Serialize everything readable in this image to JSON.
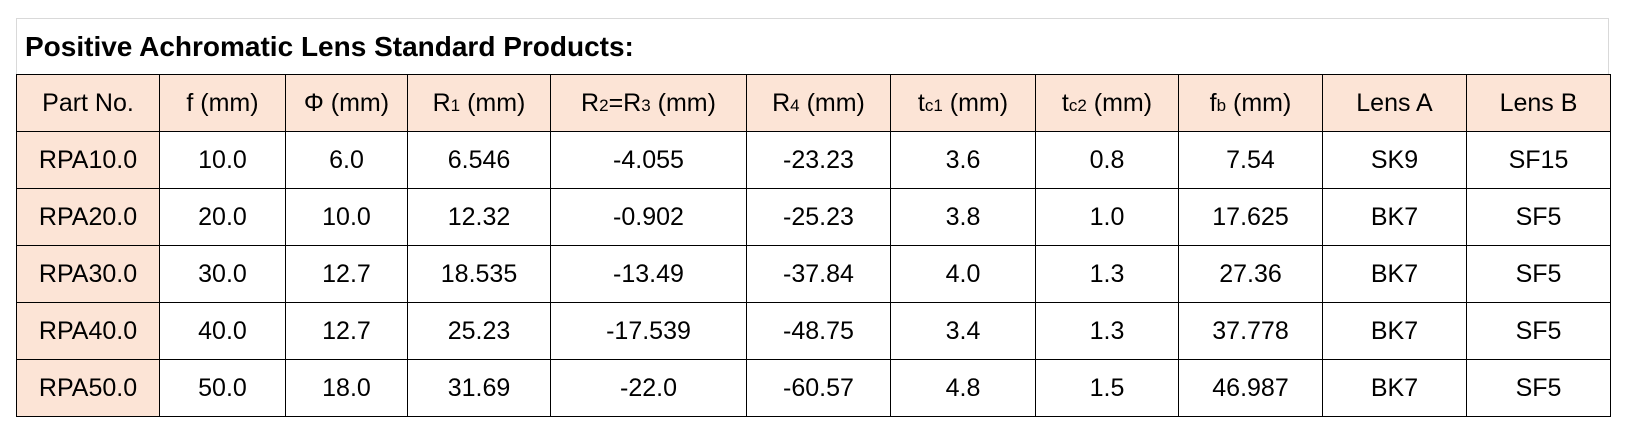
{
  "title": "Positive Achromatic Lens Standard Products:",
  "table": {
    "header": [
      [
        {
          "text": "Part No."
        }
      ],
      [
        {
          "text": "f (mm)"
        }
      ],
      [
        {
          "text": "Φ (mm)"
        }
      ],
      [
        {
          "text": "R"
        },
        {
          "text": "1",
          "sub": true
        },
        {
          "text": " (mm)"
        }
      ],
      [
        {
          "text": "R"
        },
        {
          "text": "2",
          "sub": true
        },
        {
          "text": "=R"
        },
        {
          "text": "3",
          "sub": true
        },
        {
          "text": " (mm)"
        }
      ],
      [
        {
          "text": "R"
        },
        {
          "text": "4",
          "sub": true
        },
        {
          "text": " (mm)"
        }
      ],
      [
        {
          "text": "t"
        },
        {
          "text": "c1",
          "sub": true
        },
        {
          "text": " (mm)"
        }
      ],
      [
        {
          "text": "t"
        },
        {
          "text": "c2",
          "sub": true
        },
        {
          "text": " (mm)"
        }
      ],
      [
        {
          "text": "f"
        },
        {
          "text": "b",
          "sub": true
        },
        {
          "text": " (mm)"
        }
      ],
      [
        {
          "text": "Lens A"
        }
      ],
      [
        {
          "text": "Lens B"
        }
      ]
    ],
    "rows": [
      [
        "RPA10.0",
        "10.0",
        "6.0",
        "6.546",
        "-4.055",
        "-23.23",
        "3.6",
        "0.8",
        "7.54",
        "SK9",
        "SF15"
      ],
      [
        "RPA20.0",
        "20.0",
        "10.0",
        "12.32",
        "-0.902",
        "-25.23",
        "3.8",
        "1.0",
        "17.625",
        "BK7",
        "SF5"
      ],
      [
        "RPA30.0",
        "30.0",
        "12.7",
        "18.535",
        "-13.49",
        "-37.84",
        "4.0",
        "1.3",
        "27.36",
        "BK7",
        "SF5"
      ],
      [
        "RPA40.0",
        "40.0",
        "12.7",
        "25.23",
        "-17.539",
        "-48.75",
        "3.4",
        "1.3",
        "37.778",
        "BK7",
        "SF5"
      ],
      [
        "RPA50.0",
        "50.0",
        "18.0",
        "31.69",
        "-22.0",
        "-60.57",
        "4.8",
        "1.5",
        "46.987",
        "BK7",
        "SF5"
      ]
    ]
  }
}
